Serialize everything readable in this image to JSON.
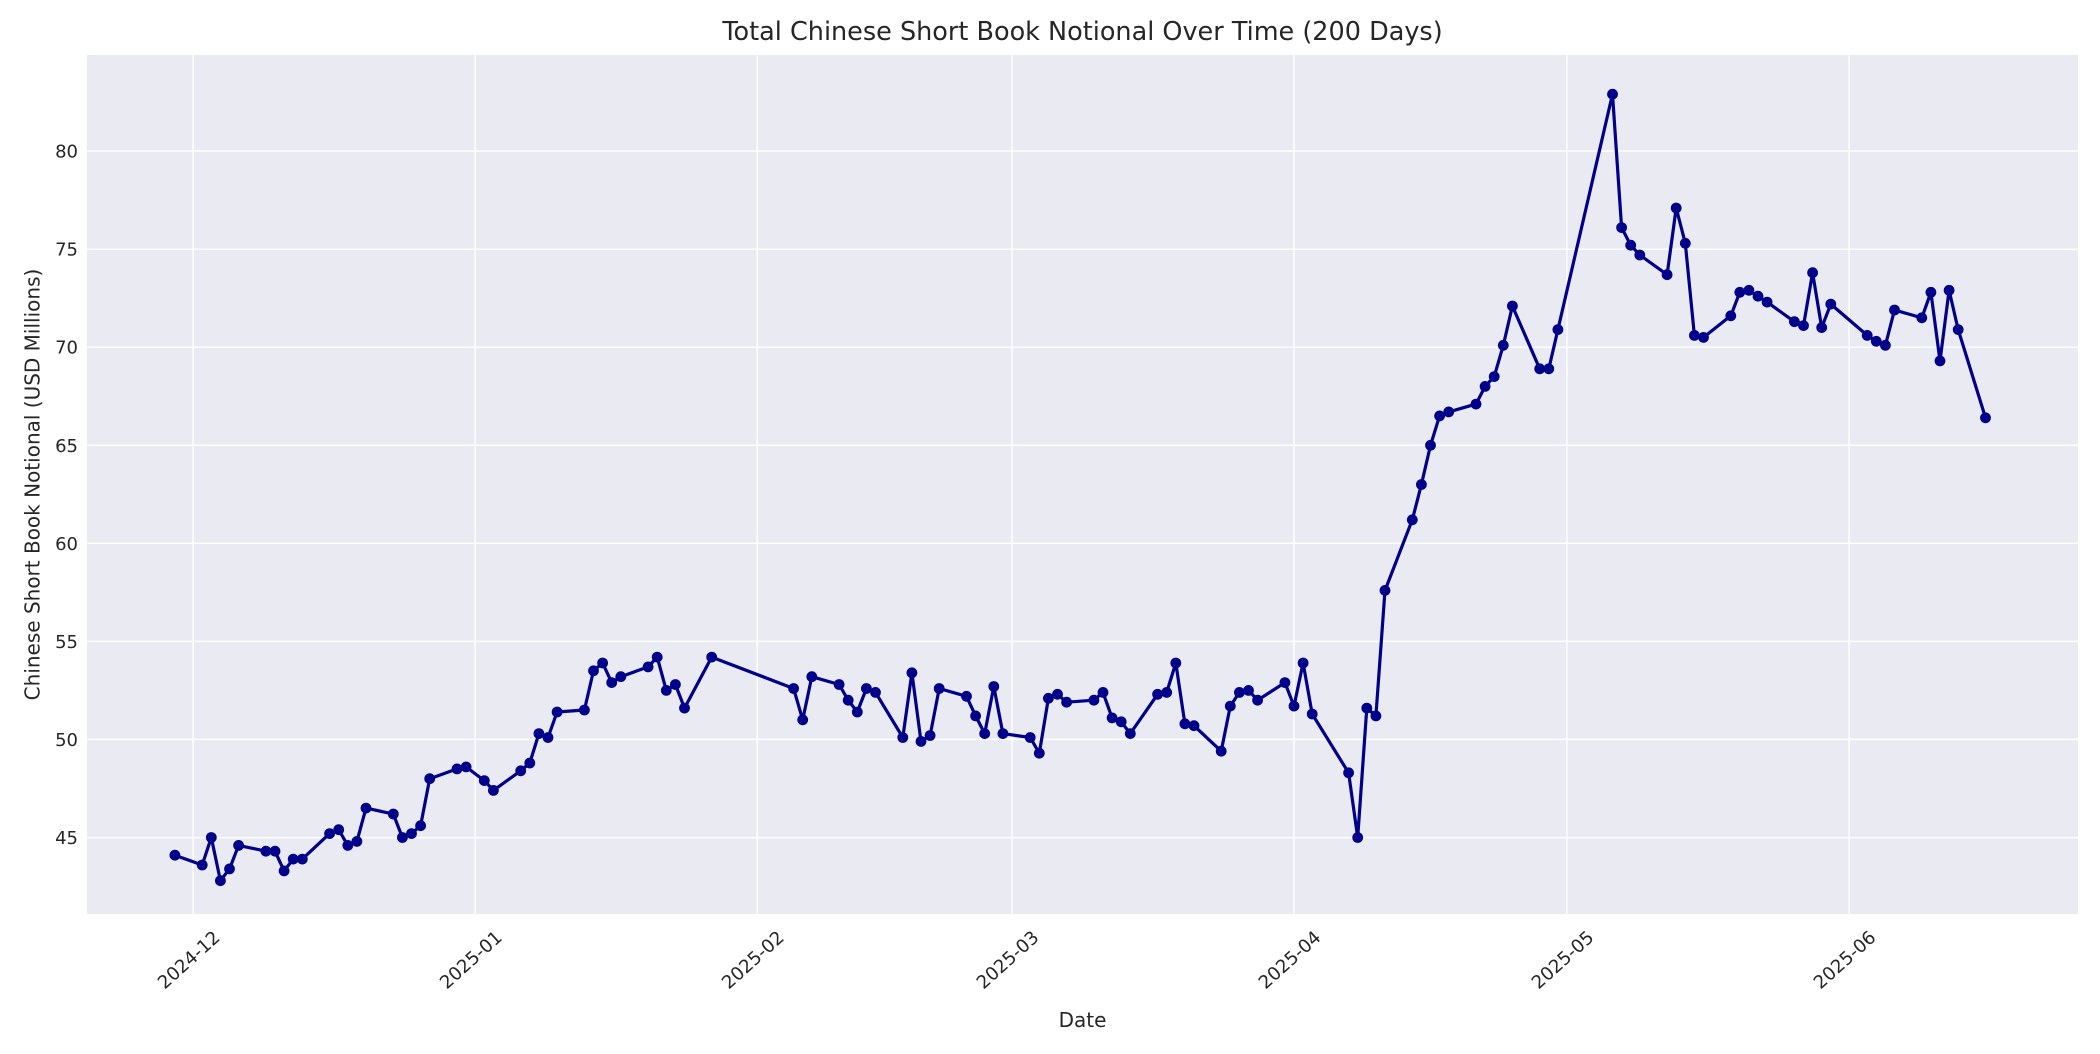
{
  "chart_data": {
    "type": "line",
    "title": "Total Chinese Short Book Notional Over Time (200 Days)",
    "xlabel": "Date",
    "ylabel": "Chinese Short Book Notional (USD Millions)",
    "x": [
      "2024-11-29",
      "2024-12-02",
      "2024-12-03",
      "2024-12-04",
      "2024-12-05",
      "2024-12-06",
      "2024-12-09",
      "2024-12-10",
      "2024-12-11",
      "2024-12-12",
      "2024-12-13",
      "2024-12-16",
      "2024-12-17",
      "2024-12-18",
      "2024-12-19",
      "2024-12-20",
      "2024-12-23",
      "2024-12-24",
      "2024-12-25",
      "2024-12-26",
      "2024-12-27",
      "2024-12-30",
      "2024-12-31",
      "2025-01-02",
      "2025-01-03",
      "2025-01-06",
      "2025-01-07",
      "2025-01-08",
      "2025-01-09",
      "2025-01-10",
      "2025-01-13",
      "2025-01-14",
      "2025-01-15",
      "2025-01-16",
      "2025-01-17",
      "2025-01-20",
      "2025-01-21",
      "2025-01-22",
      "2025-01-23",
      "2025-01-24",
      "2025-01-27",
      "2025-02-05",
      "2025-02-06",
      "2025-02-07",
      "2025-02-10",
      "2025-02-11",
      "2025-02-12",
      "2025-02-13",
      "2025-02-14",
      "2025-02-17",
      "2025-02-18",
      "2025-02-19",
      "2025-02-20",
      "2025-02-21",
      "2025-02-24",
      "2025-02-25",
      "2025-02-26",
      "2025-02-27",
      "2025-02-28",
      "2025-03-03",
      "2025-03-04",
      "2025-03-05",
      "2025-03-06",
      "2025-03-07",
      "2025-03-10",
      "2025-03-11",
      "2025-03-12",
      "2025-03-13",
      "2025-03-14",
      "2025-03-17",
      "2025-03-18",
      "2025-03-19",
      "2025-03-20",
      "2025-03-21",
      "2025-03-24",
      "2025-03-25",
      "2025-03-26",
      "2025-03-27",
      "2025-03-28",
      "2025-03-31",
      "2025-04-01",
      "2025-04-02",
      "2025-04-03",
      "2025-04-07",
      "2025-04-08",
      "2025-04-09",
      "2025-04-10",
      "2025-04-11",
      "2025-04-14",
      "2025-04-15",
      "2025-04-16",
      "2025-04-17",
      "2025-04-18",
      "2025-04-21",
      "2025-04-22",
      "2025-04-23",
      "2025-04-24",
      "2025-04-25",
      "2025-04-28",
      "2025-04-29",
      "2025-04-30",
      "2025-05-06",
      "2025-05-07",
      "2025-05-08",
      "2025-05-09",
      "2025-05-12",
      "2025-05-13",
      "2025-05-14",
      "2025-05-15",
      "2025-05-16",
      "2025-05-19",
      "2025-05-20",
      "2025-05-21",
      "2025-05-22",
      "2025-05-23",
      "2025-05-26",
      "2025-05-27",
      "2025-05-28",
      "2025-05-29",
      "2025-05-30",
      "2025-06-03",
      "2025-06-04",
      "2025-06-05",
      "2025-06-06",
      "2025-06-09",
      "2025-06-10",
      "2025-06-11",
      "2025-06-12",
      "2025-06-13",
      "2025-06-16"
    ],
    "y": [
      44.1,
      43.6,
      45.0,
      42.8,
      43.4,
      44.6,
      44.3,
      44.3,
      43.3,
      43.9,
      43.9,
      45.2,
      45.4,
      44.6,
      44.8,
      46.5,
      46.2,
      45.0,
      45.2,
      45.6,
      48.0,
      48.5,
      48.6,
      47.9,
      47.4,
      48.4,
      48.8,
      50.3,
      50.1,
      51.4,
      51.5,
      53.5,
      53.9,
      52.9,
      53.2,
      53.7,
      54.2,
      52.5,
      52.8,
      51.6,
      54.2,
      52.6,
      51.0,
      53.2,
      52.8,
      52.0,
      51.4,
      52.6,
      52.4,
      50.1,
      53.4,
      49.9,
      50.2,
      52.6,
      52.2,
      51.2,
      50.3,
      52.7,
      50.3,
      50.1,
      49.3,
      52.1,
      52.3,
      51.9,
      52.0,
      52.4,
      51.1,
      50.9,
      50.3,
      52.3,
      52.4,
      53.9,
      50.8,
      50.7,
      49.4,
      51.7,
      52.4,
      52.5,
      52.0,
      52.9,
      51.7,
      53.9,
      51.3,
      48.3,
      45.0,
      51.6,
      51.2,
      57.6,
      61.2,
      63.0,
      65.0,
      66.5,
      66.7,
      67.1,
      68.0,
      68.5,
      70.1,
      72.1,
      68.9,
      68.9,
      70.9,
      82.9,
      76.1,
      75.2,
      74.7,
      73.7,
      77.1,
      75.3,
      70.6,
      70.5,
      71.6,
      72.8,
      72.9,
      72.6,
      72.3,
      71.3,
      71.1,
      73.8,
      71.0,
      72.2,
      70.6,
      70.3,
      70.1,
      71.9,
      71.5,
      72.8,
      69.3,
      72.9,
      70.9,
      66.4
    ],
    "x_ticks": [
      {
        "date": "2024-12-01",
        "label": "2024-12"
      },
      {
        "date": "2025-01-01",
        "label": "2025-01"
      },
      {
        "date": "2025-02-01",
        "label": "2025-02"
      },
      {
        "date": "2025-03-01",
        "label": "2025-03"
      },
      {
        "date": "2025-04-01",
        "label": "2025-04"
      },
      {
        "date": "2025-05-01",
        "label": "2025-05"
      },
      {
        "date": "2025-06-01",
        "label": "2025-06"
      }
    ],
    "y_ticks": [
      45,
      50,
      55,
      60,
      65,
      70,
      75,
      80
    ],
    "xlim": [
      "2024-11-19T08:00:00",
      "2025-06-26T04:00:00"
    ],
    "ylim": [
      41.1,
      84.9
    ],
    "line_color": "#00008b",
    "plot_bg_color": "#eaeaf2",
    "grid_color": "#ffffff",
    "text_color": "#262626",
    "legend": null,
    "grid": true
  }
}
